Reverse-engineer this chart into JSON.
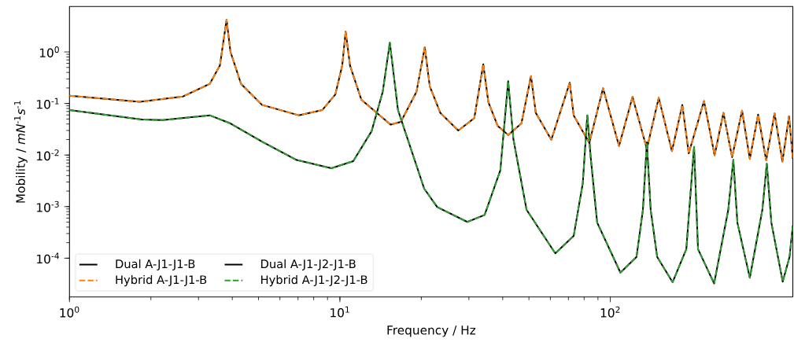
{
  "chart_data": {
    "type": "line",
    "xlabel": "Frequency / Hz",
    "ylabel": "Mobility / *mN*$^{-1}$*s*$^{-1}$",
    "log": "xy",
    "grid": false,
    "legend": "bottom left",
    "marker": "none",
    "xlim": [
      1,
      473
    ],
    "ylim": [
      1.77e-05,
      7.6
    ],
    "xticks": [
      {
        "value": 1,
        "label": "10$^{0}$"
      },
      {
        "value": 10,
        "label": "10$^{1}$"
      },
      {
        "value": 100,
        "label": "10$^{2}$"
      }
    ],
    "yticks": [
      {
        "value": 0.0001,
        "label": "10$^{-4}$"
      },
      {
        "value": 0.001,
        "label": "10$^{-3}$"
      },
      {
        "value": 0.01,
        "label": "10$^{-2}$"
      },
      {
        "value": 0.1,
        "label": "10$^{-1}$"
      },
      {
        "value": 1,
        "label": "10$^{0}$"
      }
    ],
    "series": [
      {
        "name": "Dual A-J1-J1-B",
        "color": "#000000",
        "line_style": "solid",
        "x": [
          1,
          1.82,
          2.63,
          3.3,
          3.6,
          3.81,
          3.94,
          4.31,
          5.15,
          7.04,
          8.6,
          9.62,
          10.2,
          10.5,
          10.9,
          12.0,
          15.4,
          16.8,
          19.2,
          20.6,
          21.5,
          23.5,
          27.4,
          31.4,
          33.9,
          35.4,
          38.3,
          41.9,
          46.9,
          50.9,
          53.0,
          60.5,
          70.8,
          73.2,
          83.6,
          94.0,
          107.7,
          120.8,
          136.5,
          151,
          169,
          184.6,
          195,
          222,
          243,
          262,
          282,
          307,
          328,
          352,
          377,
          405,
          433,
          458,
          473
        ],
        "values": [
          0.142,
          0.108,
          0.137,
          0.24,
          0.545,
          4.2,
          1.0,
          0.24,
          0.094,
          0.059,
          0.0745,
          0.15,
          0.545,
          2.49,
          0.545,
          0.119,
          0.039,
          0.044,
          0.169,
          1.23,
          0.214,
          0.066,
          0.03,
          0.052,
          0.577,
          0.106,
          0.037,
          0.0245,
          0.041,
          0.34,
          0.066,
          0.0198,
          0.254,
          0.059,
          0.0172,
          0.197,
          0.015,
          0.134,
          0.0132,
          0.129,
          0.0119,
          0.094,
          0.0108,
          0.112,
          0.0099,
          0.066,
          0.0091,
          0.0727,
          0.0084,
          0.061,
          0.0079,
          0.064,
          0.0075,
          0.057,
          0.0085
        ]
      },
      {
        "name": "Hybrid A-J1-J1-B",
        "color": "#ff7f0e",
        "line_style": "dashed",
        "x": [
          1,
          1.82,
          2.63,
          3.3,
          3.6,
          3.81,
          3.94,
          4.31,
          5.15,
          7.04,
          8.6,
          9.62,
          10.2,
          10.5,
          10.9,
          12.0,
          15.4,
          16.8,
          19.2,
          20.6,
          21.5,
          23.5,
          27.4,
          31.4,
          33.9,
          35.4,
          38.3,
          41.9,
          46.9,
          50.9,
          53.0,
          60.5,
          70.8,
          73.2,
          83.6,
          94.0,
          107.7,
          120.8,
          136.5,
          151,
          169,
          184.6,
          195,
          222,
          243,
          262,
          282,
          307,
          328,
          352,
          377,
          405,
          433,
          458,
          473
        ],
        "values": [
          0.142,
          0.108,
          0.137,
          0.24,
          0.545,
          4.2,
          1.0,
          0.24,
          0.094,
          0.059,
          0.0745,
          0.15,
          0.545,
          2.49,
          0.545,
          0.119,
          0.039,
          0.044,
          0.169,
          1.23,
          0.214,
          0.066,
          0.03,
          0.052,
          0.577,
          0.106,
          0.037,
          0.0245,
          0.041,
          0.34,
          0.066,
          0.0198,
          0.254,
          0.059,
          0.0172,
          0.197,
          0.015,
          0.134,
          0.0132,
          0.129,
          0.0119,
          0.094,
          0.0108,
          0.112,
          0.0099,
          0.066,
          0.0091,
          0.0727,
          0.0084,
          0.061,
          0.0079,
          0.064,
          0.0075,
          0.057,
          0.0085
        ]
      },
      {
        "name": "Dual A-J1-J2-J1-B",
        "color": "#000000",
        "line_style": "solid",
        "x": [
          1,
          1.85,
          2.21,
          3.3,
          3.94,
          5.15,
          6.88,
          9.3,
          11.2,
          13.1,
          14.4,
          15.3,
          16.4,
          20.5,
          22.9,
          29.6,
          34.3,
          39.2,
          41.9,
          43.8,
          49,
          62.6,
          73.2,
          79.1,
          82.2,
          84.6,
          89.4,
          109,
          125,
          132,
          136.5,
          141,
          149,
          170,
          191,
          204,
          211,
          242,
          273,
          285,
          295,
          328,
          365,
          379,
          394,
          434,
          460,
          473
        ],
        "values": [
          0.0745,
          0.049,
          0.0477,
          0.059,
          0.041,
          0.0183,
          0.0081,
          0.00555,
          0.0076,
          0.029,
          0.169,
          1.51,
          0.0745,
          0.00223,
          0.00098,
          0.000505,
          0.00069,
          0.00505,
          0.27,
          0.0205,
          0.00087,
          0.000124,
          0.00027,
          0.00282,
          0.059,
          0.0091,
          0.00049,
          5.25e-05,
          0.000106,
          0.00087,
          0.0177,
          0.00087,
          0.000106,
          3.42e-05,
          0.00015,
          0.0145,
          0.00015,
          3.23e-05,
          0.00087,
          0.0081,
          0.00049,
          4.17e-05,
          0.00087,
          0.00678,
          0.00049,
          3.5e-05,
          0.000106,
          0.00043
        ]
      },
      {
        "name": "Hybrid A-J1-J2-J1-B",
        "color": "#2ca02c",
        "line_style": "dashed",
        "x": [
          1,
          1.85,
          2.21,
          3.3,
          3.94,
          5.15,
          6.88,
          9.3,
          11.2,
          13.1,
          14.4,
          15.3,
          16.4,
          20.5,
          22.9,
          29.6,
          34.3,
          39.2,
          41.9,
          43.8,
          49,
          62.6,
          73.2,
          79.1,
          82.2,
          84.6,
          89.4,
          109,
          125,
          132,
          136.5,
          141,
          149,
          170,
          191,
          204,
          211,
          242,
          273,
          285,
          295,
          328,
          365,
          379,
          394,
          434,
          460,
          473
        ],
        "values": [
          0.0745,
          0.049,
          0.0477,
          0.059,
          0.041,
          0.0183,
          0.0081,
          0.00555,
          0.0076,
          0.029,
          0.169,
          1.51,
          0.0745,
          0.00223,
          0.00098,
          0.000505,
          0.00069,
          0.00505,
          0.27,
          0.0205,
          0.00087,
          0.000124,
          0.00027,
          0.00282,
          0.059,
          0.0091,
          0.00049,
          5.25e-05,
          0.000106,
          0.00087,
          0.0177,
          0.00087,
          0.000106,
          3.42e-05,
          0.00015,
          0.0145,
          0.00015,
          3.23e-05,
          0.00087,
          0.0081,
          0.00049,
          4.17e-05,
          0.00087,
          0.00678,
          0.00049,
          3.5e-05,
          0.000106,
          0.00043
        ]
      }
    ]
  }
}
